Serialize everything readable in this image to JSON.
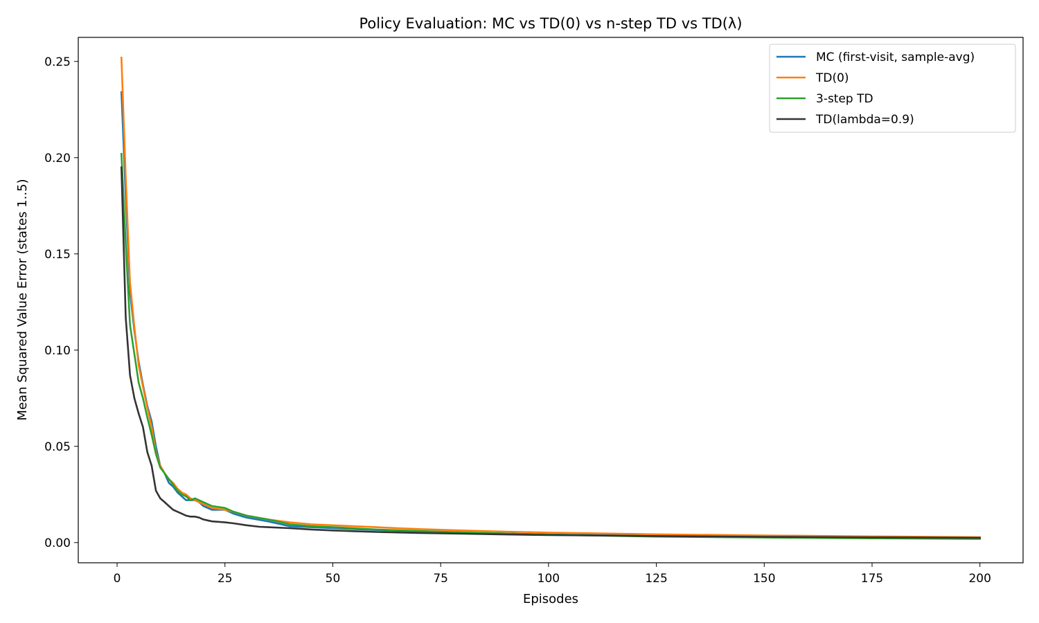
{
  "chart_data": {
    "type": "line",
    "title": "Policy Evaluation: MC vs TD(0) vs n-step TD vs TD(λ)",
    "xlabel": "Episodes",
    "ylabel": "Mean Squared Value Error (states 1..5)",
    "xlim": [
      -9,
      210
    ],
    "ylim": [
      -0.0105,
      0.2625
    ],
    "x_ticks": [
      0,
      25,
      50,
      75,
      100,
      125,
      150,
      175,
      200
    ],
    "y_ticks": [
      0.0,
      0.05,
      0.1,
      0.15,
      0.2,
      0.25
    ],
    "y_tick_labels": [
      "0.00",
      "0.05",
      "0.10",
      "0.15",
      "0.20",
      "0.25"
    ],
    "grid": false,
    "legend_position": "top-right",
    "series": [
      {
        "name": "MC (first-visit, sample-avg)",
        "color": "#1f77b4",
        "x": [
          1,
          2,
          3,
          4,
          5,
          6,
          7,
          8,
          9,
          10,
          11,
          12,
          13,
          14,
          15,
          16,
          17,
          18,
          19,
          20,
          22,
          25,
          27,
          30,
          35,
          40,
          45,
          50,
          60,
          70,
          80,
          90,
          100,
          125,
          150,
          175,
          200
        ],
        "y": [
          0.234,
          0.18,
          0.13,
          0.11,
          0.094,
          0.082,
          0.071,
          0.063,
          0.05,
          0.04,
          0.036,
          0.031,
          0.029,
          0.026,
          0.024,
          0.022,
          0.022,
          0.022,
          0.021,
          0.019,
          0.017,
          0.017,
          0.015,
          0.013,
          0.011,
          0.0085,
          0.008,
          0.0075,
          0.0065,
          0.0058,
          0.0052,
          0.0047,
          0.0042,
          0.0035,
          0.003,
          0.0026,
          0.0023
        ]
      },
      {
        "name": "TD(0)",
        "color": "#ff7f0e",
        "x": [
          1,
          2,
          3,
          4,
          5,
          6,
          7,
          8,
          9,
          10,
          11,
          12,
          13,
          14,
          15,
          16,
          17,
          18,
          19,
          20,
          22,
          25,
          27,
          30,
          35,
          40,
          45,
          50,
          55,
          60,
          65,
          70,
          80,
          90,
          100,
          125,
          150,
          175,
          200
        ],
        "y": [
          0.252,
          0.19,
          0.135,
          0.112,
          0.092,
          0.081,
          0.07,
          0.06,
          0.047,
          0.04,
          0.036,
          0.033,
          0.031,
          0.028,
          0.026,
          0.025,
          0.023,
          0.022,
          0.021,
          0.02,
          0.018,
          0.017,
          0.016,
          0.014,
          0.012,
          0.0105,
          0.0095,
          0.009,
          0.0085,
          0.008,
          0.0075,
          0.007,
          0.0063,
          0.0057,
          0.0052,
          0.0043,
          0.0037,
          0.0032,
          0.0028
        ]
      },
      {
        "name": "3-step TD",
        "color": "#2ca02c",
        "x": [
          1,
          2,
          3,
          4,
          5,
          6,
          7,
          8,
          9,
          10,
          11,
          12,
          13,
          14,
          15,
          16,
          17,
          18,
          19,
          20,
          22,
          25,
          27,
          30,
          35,
          40,
          45,
          50,
          60,
          70,
          80,
          90,
          100,
          125,
          150,
          175,
          200
        ],
        "y": [
          0.202,
          0.155,
          0.113,
          0.098,
          0.083,
          0.075,
          0.065,
          0.056,
          0.046,
          0.039,
          0.036,
          0.033,
          0.03,
          0.027,
          0.025,
          0.024,
          0.022,
          0.023,
          0.022,
          0.021,
          0.019,
          0.018,
          0.016,
          0.014,
          0.012,
          0.0095,
          0.0085,
          0.008,
          0.0068,
          0.006,
          0.0053,
          0.0047,
          0.0041,
          0.0031,
          0.0026,
          0.0022,
          0.0019
        ]
      },
      {
        "name": "TD(lambda=0.9)",
        "color": "#333333",
        "x": [
          1,
          2,
          3,
          4,
          5,
          6,
          7,
          8,
          9,
          10,
          11,
          12,
          13,
          14,
          15,
          16,
          17,
          18,
          19,
          20,
          21,
          22,
          25,
          27,
          30,
          33,
          35,
          40,
          45,
          50,
          60,
          70,
          80,
          90,
          100,
          125,
          150,
          175,
          200
        ],
        "y": [
          0.195,
          0.117,
          0.087,
          0.075,
          0.067,
          0.06,
          0.047,
          0.04,
          0.027,
          0.023,
          0.021,
          0.019,
          0.017,
          0.016,
          0.015,
          0.014,
          0.0135,
          0.0135,
          0.013,
          0.012,
          0.0115,
          0.011,
          0.0105,
          0.01,
          0.009,
          0.0082,
          0.008,
          0.0075,
          0.0068,
          0.0063,
          0.0055,
          0.005,
          0.0046,
          0.0042,
          0.0039,
          0.0034,
          0.003,
          0.0027,
          0.0025
        ]
      }
    ]
  }
}
